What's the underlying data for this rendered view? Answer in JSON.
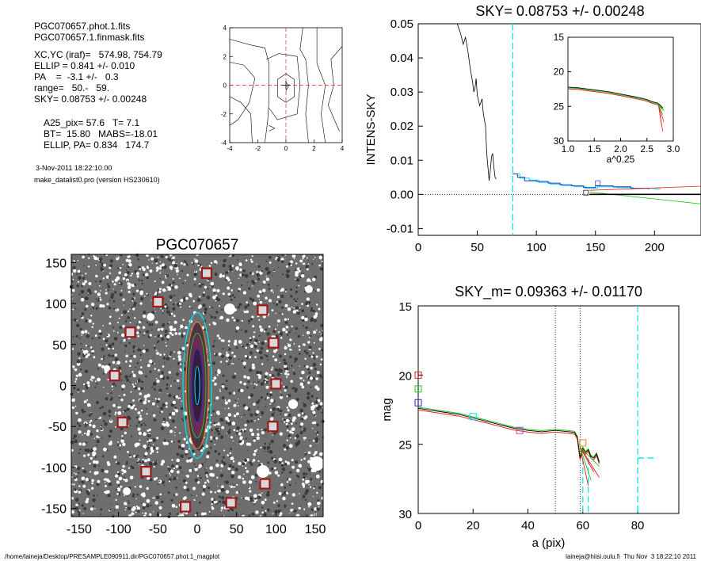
{
  "info": {
    "lines_a": [
      "PGC070657.phot.1.fits",
      "PGC070657.1.finmask.fits"
    ],
    "lines_b": [
      "XC,YC (iraf)=   574.98, 754.79",
      "ELLIP = 0.841 +/- 0.010",
      "PA    =  -3.1 +/-   0.3",
      "range=   50.-   59.",
      "SKY= 0.08753 +/- 0.00248"
    ],
    "lines_c": [
      "A25_pix= 57.6   T= 7.1",
      "BT=  15.80   MABS=-18.01",
      "ELLIP, PA= 0.834   174.7"
    ],
    "date": "3-Nov-2011 18:22:10.00",
    "program": "make_datalist0.pro (version HS230610)"
  },
  "footer": {
    "left": "/home/laineja/Desktop/PRESAMPLE090911.dir/PGC070657.phot.1_magplot",
    "right": "laineja@hiisi.oulu.fi  Thu Nov  3 18:22:10 2011"
  },
  "colors": {
    "cyan": "#00e5ee",
    "red": "#e8201e",
    "green": "#1ec81e",
    "blue": "#2030d0",
    "magenta": "#c040c0",
    "orange": "#f08020"
  },
  "chart_data": [
    {
      "id": "contour",
      "type": "contour",
      "title": "",
      "xticks": [
        -4,
        -2,
        0,
        2,
        4
      ],
      "yticks": [
        -4,
        -2,
        0,
        2,
        4
      ],
      "xlim": [
        -4,
        4
      ],
      "ylim": [
        -4,
        4
      ]
    },
    {
      "id": "sky",
      "type": "line",
      "title": "SKY= 0.08753 +/- 0.00248",
      "ylabel": "INTENS-SKY",
      "xlim": [
        0,
        240
      ],
      "ylim": [
        -0.012,
        0.05
      ],
      "xticks": [
        0,
        50,
        100,
        150,
        200
      ],
      "yticks": [
        0.05,
        0.04,
        0.03,
        0.02,
        0.01,
        0.0,
        -0.01
      ],
      "ytick_labels": [
        "0.05",
        "0.04",
        "0.03",
        "0.02",
        "0.01",
        "0.00",
        "-0.01"
      ],
      "profile": [
        [
          33,
          0.05
        ],
        [
          36,
          0.047
        ],
        [
          38,
          0.044
        ],
        [
          40,
          0.046
        ],
        [
          42,
          0.042
        ],
        [
          44,
          0.037
        ],
        [
          46,
          0.033
        ],
        [
          47,
          0.03
        ],
        [
          48,
          0.031
        ],
        [
          49,
          0.034
        ],
        [
          50,
          0.029
        ],
        [
          52,
          0.026
        ],
        [
          54,
          0.028
        ],
        [
          55,
          0.024
        ],
        [
          57,
          0.02
        ],
        [
          58,
          0.012
        ],
        [
          59,
          0.008
        ],
        [
          60,
          0.004
        ],
        [
          61,
          0.007
        ],
        [
          62,
          0.011
        ],
        [
          63,
          0.012
        ],
        [
          64,
          0.008
        ],
        [
          65,
          0.005
        ],
        [
          66,
          0.0045
        ]
      ],
      "steps_blue": [
        [
          80,
          0.006
        ],
        [
          84,
          0.005
        ],
        [
          90,
          0.004
        ],
        [
          100,
          0.0038
        ],
        [
          110,
          0.0033
        ],
        [
          120,
          0.0028
        ],
        [
          130,
          0.0025
        ],
        [
          140,
          0.002
        ],
        [
          150,
          0.0025
        ],
        [
          165,
          0.0022
        ],
        [
          180,
          0.0018
        ],
        [
          195,
          0.0015
        ]
      ],
      "steps_cyan": [
        [
          80,
          0.006
        ],
        [
          86,
          0.0048
        ],
        [
          94,
          0.0042
        ],
        [
          102,
          0.0035
        ],
        [
          112,
          0.003
        ],
        [
          122,
          0.0026
        ],
        [
          132,
          0.0022
        ],
        [
          142,
          0.0018
        ],
        [
          152,
          0.0022
        ],
        [
          168,
          0.002
        ],
        [
          182,
          0.0018
        ],
        [
          200,
          0.0016
        ]
      ],
      "line_red": [
        [
          145,
          0.0012
        ],
        [
          240,
          0.0024
        ]
      ],
      "line_green": [
        [
          145,
          0.0007
        ],
        [
          240,
          -0.0028
        ]
      ],
      "line_black": [
        [
          145,
          0.0
        ],
        [
          240,
          0.0
        ]
      ],
      "vline_cyan_x": 80,
      "inset": {
        "xlabel": "a^0.25",
        "xlim": [
          1.0,
          3.0
        ],
        "ylim": [
          15,
          30
        ],
        "xticks": [
          1.0,
          1.5,
          2.0,
          2.5,
          3.0
        ],
        "xtick_labels": [
          "1.0",
          "1.5",
          "2.0",
          "2.5",
          "3.0"
        ],
        "yticks": [
          15,
          20,
          25,
          30
        ],
        "curve": [
          [
            1.0,
            22.3
          ],
          [
            1.2,
            22.4
          ],
          [
            1.4,
            22.6
          ],
          [
            1.6,
            22.8
          ],
          [
            1.8,
            23.0
          ],
          [
            2.0,
            23.3
          ],
          [
            2.2,
            23.6
          ],
          [
            2.4,
            23.9
          ],
          [
            2.5,
            24.1
          ],
          [
            2.6,
            24.4
          ],
          [
            2.7,
            24.6
          ],
          [
            2.75,
            24.9
          ],
          [
            2.8,
            25.3
          ]
        ]
      }
    },
    {
      "id": "image",
      "type": "image",
      "title": "PGC070657",
      "xlim": [
        -160,
        160
      ],
      "ylim": [
        -160,
        160
      ],
      "xticks": [
        -150,
        -100,
        -50,
        0,
        50,
        100,
        150
      ],
      "yticks": [
        150,
        100,
        50,
        0,
        -50,
        -100,
        -150
      ],
      "markers": [
        [
          12,
          137
        ],
        [
          -50,
          102
        ],
        [
          83,
          92
        ],
        [
          -85,
          65
        ],
        [
          97,
          52
        ],
        [
          -105,
          12
        ],
        [
          100,
          2
        ],
        [
          -95,
          -45
        ],
        [
          96,
          -50
        ],
        [
          -65,
          -105
        ],
        [
          86,
          -120
        ],
        [
          -15,
          -148
        ],
        [
          43,
          -143
        ]
      ]
    },
    {
      "id": "mag",
      "type": "line",
      "title": "SKY_m=  0.09363 +/- 0.01170",
      "xlabel": "a (pix)",
      "ylabel": "mag",
      "xlim": [
        0,
        95
      ],
      "ylim": [
        30,
        15
      ],
      "xticks": [
        0,
        20,
        40,
        60,
        80
      ],
      "yticks": [
        15,
        20,
        25,
        30
      ],
      "curve": [
        [
          0,
          22.4
        ],
        [
          5,
          22.55
        ],
        [
          10,
          22.7
        ],
        [
          15,
          22.85
        ],
        [
          20,
          23.1
        ],
        [
          25,
          23.35
        ],
        [
          30,
          23.6
        ],
        [
          35,
          23.85
        ],
        [
          40,
          24.0
        ],
        [
          45,
          24.1
        ],
        [
          50,
          24.0
        ],
        [
          55,
          24.1
        ],
        [
          57,
          24.15
        ],
        [
          58,
          24.5
        ],
        [
          59,
          26.0
        ],
        [
          60,
          25.3
        ],
        [
          61,
          25.6
        ],
        [
          62,
          25.4
        ],
        [
          63,
          25.9
        ],
        [
          64,
          26.0
        ],
        [
          65,
          25.7
        ],
        [
          66,
          26.3
        ]
      ],
      "vlines_dotted": [
        50,
        59
      ],
      "vlines_cyan": [
        60,
        62,
        80
      ],
      "sky_cyan": [
        [
          80,
          26.0
        ],
        [
          87,
          26.0
        ]
      ],
      "side_markers": [
        [
          0,
          20.0,
          "red"
        ],
        [
          0,
          21.0,
          "green"
        ],
        [
          0,
          22.0,
          "blue"
        ],
        [
          20,
          23.0,
          "cyan"
        ],
        [
          37,
          24.0,
          "magenta"
        ],
        [
          60,
          24.9,
          "orange"
        ]
      ]
    }
  ]
}
